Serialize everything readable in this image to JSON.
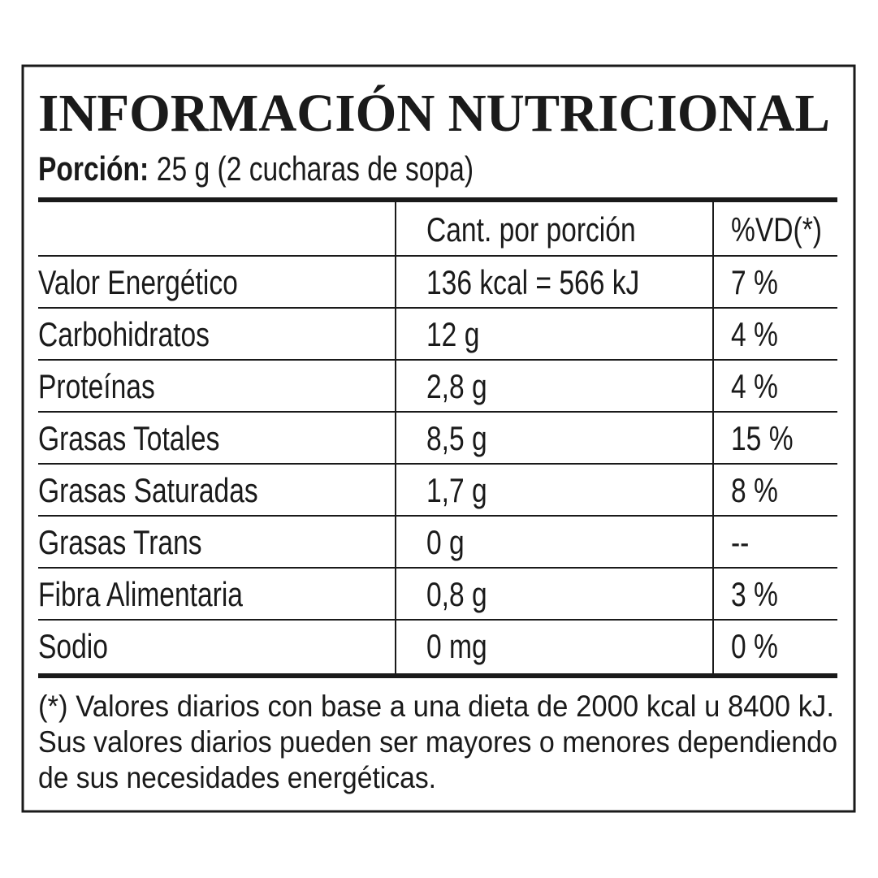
{
  "title": "INFORMACIÓN NUTRICIONAL",
  "serving": {
    "label": "Porción:",
    "value": "25 g (2 cucharas de sopa)"
  },
  "table": {
    "header": [
      "Cant. por porción",
      "%VD(*)"
    ],
    "rows": [
      [
        "Valor Energético",
        "136 kcal = 566 kJ",
        "7 %"
      ],
      [
        "Carbohidratos",
        "12 g",
        "4 %"
      ],
      [
        "Proteínas",
        "2,8 g",
        "4 %"
      ],
      [
        "Grasas Totales",
        "8,5 g",
        "15 %"
      ],
      [
        "Grasas Saturadas",
        "1,7 g",
        "8 %"
      ],
      [
        "Grasas Trans",
        "0 g",
        "--"
      ],
      [
        "Fibra Alimentaria",
        "0,8 g",
        "3 %"
      ],
      [
        "Sodio",
        "0 mg",
        "0 %"
      ]
    ]
  },
  "footnote": [
    "(*) Valores diarios con base a una dieta de 2000 kcal u 8400 kJ.",
    "Sus valores diarios pueden ser mayores o menores dependiendo",
    "de sus necesidades energéticas."
  ]
}
